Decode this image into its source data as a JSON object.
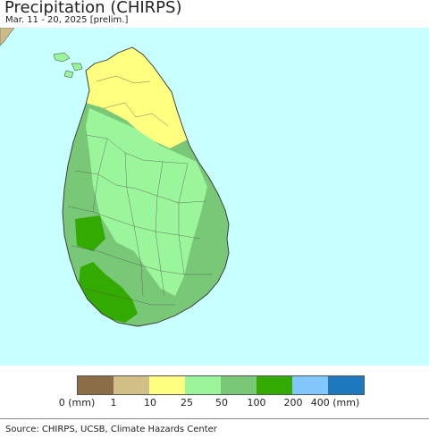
{
  "header": {
    "title": "Precipitation (CHIRPS)",
    "subtitle": "Mar. 11 - 20, 2025 [prelim.]"
  },
  "map": {
    "sea_color": "#c8ffff",
    "land_outside_color": "#ccbb88",
    "border_color": "#555555"
  },
  "legend": {
    "colors": [
      "#8b6d47",
      "#d2be87",
      "#ffff80",
      "#9bf59b",
      "#78c878",
      "#32aa00",
      "#82c8ff",
      "#1e78be"
    ],
    "labels": [
      "0 (mm)",
      "1",
      "10",
      "25",
      "50",
      "100",
      "200",
      "400 (mm)"
    ]
  },
  "footer": {
    "source": "Source: CHIRPS, UCSB, Climate Hazards Center"
  }
}
